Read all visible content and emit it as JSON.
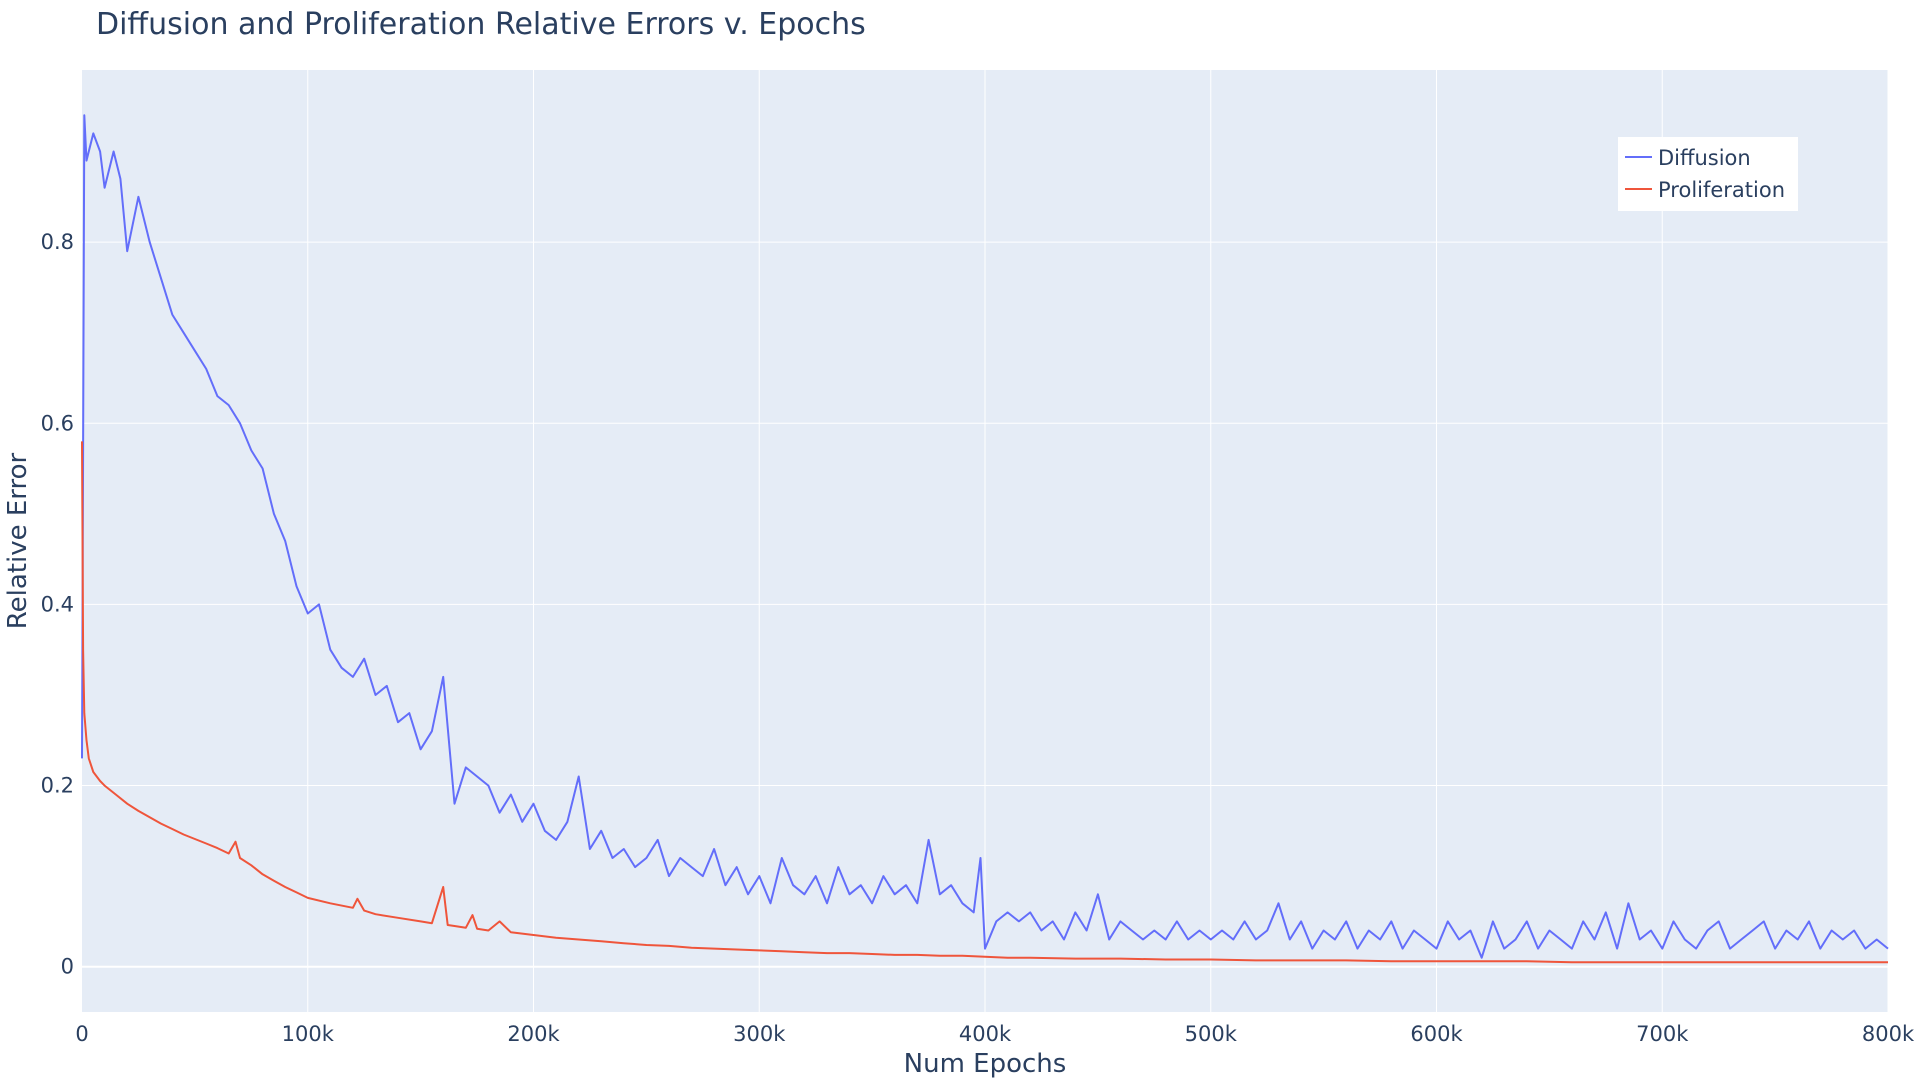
{
  "chart_data": {
    "type": "line",
    "title": "Diffusion and Proliferation Relative Errors v. Epochs",
    "xlabel": "Num Epochs",
    "ylabel": "Relative Error",
    "xlim": [
      0,
      800000
    ],
    "ylim": [
      -0.05,
      0.99
    ],
    "grid": true,
    "legend_position": "top-right",
    "xticks": [
      {
        "value": 0,
        "label": "0"
      },
      {
        "value": 100000,
        "label": "100k"
      },
      {
        "value": 200000,
        "label": "200k"
      },
      {
        "value": 300000,
        "label": "300k"
      },
      {
        "value": 400000,
        "label": "400k"
      },
      {
        "value": 500000,
        "label": "500k"
      },
      {
        "value": 600000,
        "label": "600k"
      },
      {
        "value": 700000,
        "label": "700k"
      },
      {
        "value": 800000,
        "label": "800k"
      }
    ],
    "yticks": [
      {
        "value": 0,
        "label": "0"
      },
      {
        "value": 0.2,
        "label": "0.2"
      },
      {
        "value": 0.4,
        "label": "0.4"
      },
      {
        "value": 0.6,
        "label": "0.6"
      },
      {
        "value": 0.8,
        "label": "0.8"
      }
    ],
    "series": [
      {
        "name": "Diffusion",
        "color": "#636efa",
        "x": [
          0,
          1000,
          2000,
          5000,
          8000,
          10000,
          14000,
          17000,
          20000,
          25000,
          30000,
          35000,
          40000,
          45000,
          50000,
          55000,
          60000,
          65000,
          70000,
          75000,
          80000,
          85000,
          90000,
          95000,
          100000,
          105000,
          110000,
          115000,
          120000,
          125000,
          130000,
          135000,
          140000,
          145000,
          150000,
          155000,
          160000,
          165000,
          170000,
          175000,
          180000,
          185000,
          190000,
          195000,
          200000,
          205000,
          210000,
          215000,
          220000,
          225000,
          230000,
          235000,
          240000,
          245000,
          250000,
          255000,
          260000,
          265000,
          270000,
          275000,
          280000,
          285000,
          290000,
          295000,
          300000,
          305000,
          310000,
          315000,
          320000,
          325000,
          330000,
          335000,
          340000,
          345000,
          350000,
          355000,
          360000,
          365000,
          370000,
          375000,
          380000,
          385000,
          390000,
          395000,
          398000,
          400000,
          405000,
          410000,
          415000,
          420000,
          425000,
          430000,
          435000,
          440000,
          445000,
          450000,
          455000,
          460000,
          465000,
          470000,
          475000,
          480000,
          485000,
          490000,
          495000,
          500000,
          505000,
          510000,
          515000,
          520000,
          525000,
          530000,
          535000,
          540000,
          545000,
          550000,
          555000,
          560000,
          565000,
          570000,
          575000,
          580000,
          585000,
          590000,
          595000,
          600000,
          605000,
          610000,
          615000,
          620000,
          625000,
          630000,
          635000,
          640000,
          645000,
          650000,
          655000,
          660000,
          665000,
          670000,
          675000,
          680000,
          685000,
          690000,
          695000,
          700000,
          705000,
          710000,
          715000,
          720000,
          725000,
          730000,
          735000,
          740000,
          745000,
          750000,
          755000,
          760000,
          765000,
          770000,
          775000,
          780000,
          785000,
          790000,
          795000,
          800000
        ],
        "values": [
          0.23,
          0.94,
          0.89,
          0.92,
          0.9,
          0.86,
          0.9,
          0.87,
          0.79,
          0.85,
          0.8,
          0.76,
          0.72,
          0.7,
          0.68,
          0.66,
          0.63,
          0.62,
          0.6,
          0.57,
          0.55,
          0.5,
          0.47,
          0.42,
          0.39,
          0.4,
          0.35,
          0.33,
          0.32,
          0.34,
          0.3,
          0.31,
          0.27,
          0.28,
          0.24,
          0.26,
          0.32,
          0.18,
          0.22,
          0.21,
          0.2,
          0.17,
          0.19,
          0.16,
          0.18,
          0.15,
          0.14,
          0.16,
          0.21,
          0.13,
          0.15,
          0.12,
          0.13,
          0.11,
          0.12,
          0.14,
          0.1,
          0.12,
          0.11,
          0.1,
          0.13,
          0.09,
          0.11,
          0.08,
          0.1,
          0.07,
          0.12,
          0.09,
          0.08,
          0.1,
          0.07,
          0.11,
          0.08,
          0.09,
          0.07,
          0.1,
          0.08,
          0.09,
          0.07,
          0.14,
          0.08,
          0.09,
          0.07,
          0.06,
          0.12,
          0.02,
          0.05,
          0.06,
          0.05,
          0.06,
          0.04,
          0.05,
          0.03,
          0.06,
          0.04,
          0.08,
          0.03,
          0.05,
          0.04,
          0.03,
          0.04,
          0.03,
          0.05,
          0.03,
          0.04,
          0.03,
          0.04,
          0.03,
          0.05,
          0.03,
          0.04,
          0.07,
          0.03,
          0.05,
          0.02,
          0.04,
          0.03,
          0.05,
          0.02,
          0.04,
          0.03,
          0.05,
          0.02,
          0.04,
          0.03,
          0.02,
          0.05,
          0.03,
          0.04,
          0.01,
          0.05,
          0.02,
          0.03,
          0.05,
          0.02,
          0.04,
          0.03,
          0.02,
          0.05,
          0.03,
          0.06,
          0.02,
          0.07,
          0.03,
          0.04,
          0.02,
          0.05,
          0.03,
          0.02,
          0.04,
          0.05,
          0.02,
          0.03,
          0.04,
          0.05,
          0.02,
          0.04,
          0.03,
          0.05,
          0.02,
          0.04,
          0.03,
          0.04,
          0.02,
          0.03,
          0.02
        ]
      },
      {
        "name": "Proliferation",
        "color": "#ef553b",
        "x": [
          0,
          500,
          1000,
          2000,
          3000,
          5000,
          8000,
          10000,
          15000,
          20000,
          25000,
          30000,
          35000,
          40000,
          45000,
          50000,
          55000,
          60000,
          65000,
          68000,
          70000,
          75000,
          80000,
          85000,
          90000,
          95000,
          100000,
          110000,
          120000,
          122000,
          125000,
          130000,
          140000,
          150000,
          155000,
          160000,
          162000,
          165000,
          170000,
          173000,
          175000,
          180000,
          185000,
          190000,
          200000,
          210000,
          220000,
          230000,
          240000,
          250000,
          260000,
          270000,
          280000,
          290000,
          300000,
          310000,
          320000,
          330000,
          340000,
          350000,
          360000,
          370000,
          380000,
          390000,
          400000,
          410000,
          420000,
          440000,
          460000,
          480000,
          500000,
          520000,
          540000,
          560000,
          580000,
          600000,
          620000,
          640000,
          660000,
          680000,
          700000,
          720000,
          740000,
          760000,
          780000,
          800000
        ],
        "values": [
          0.58,
          0.35,
          0.28,
          0.25,
          0.23,
          0.215,
          0.205,
          0.2,
          0.19,
          0.18,
          0.172,
          0.165,
          0.158,
          0.152,
          0.146,
          0.141,
          0.136,
          0.131,
          0.125,
          0.138,
          0.12,
          0.112,
          0.102,
          0.095,
          0.088,
          0.082,
          0.076,
          0.07,
          0.065,
          0.075,
          0.062,
          0.058,
          0.054,
          0.05,
          0.048,
          0.088,
          0.046,
          0.045,
          0.043,
          0.057,
          0.042,
          0.04,
          0.05,
          0.038,
          0.035,
          0.032,
          0.03,
          0.028,
          0.026,
          0.024,
          0.023,
          0.021,
          0.02,
          0.019,
          0.018,
          0.017,
          0.016,
          0.015,
          0.015,
          0.014,
          0.013,
          0.013,
          0.012,
          0.012,
          0.011,
          0.01,
          0.01,
          0.009,
          0.009,
          0.008,
          0.008,
          0.007,
          0.007,
          0.007,
          0.006,
          0.006,
          0.006,
          0.006,
          0.005,
          0.005,
          0.005,
          0.005,
          0.005,
          0.005,
          0.005,
          0.005
        ]
      }
    ]
  }
}
